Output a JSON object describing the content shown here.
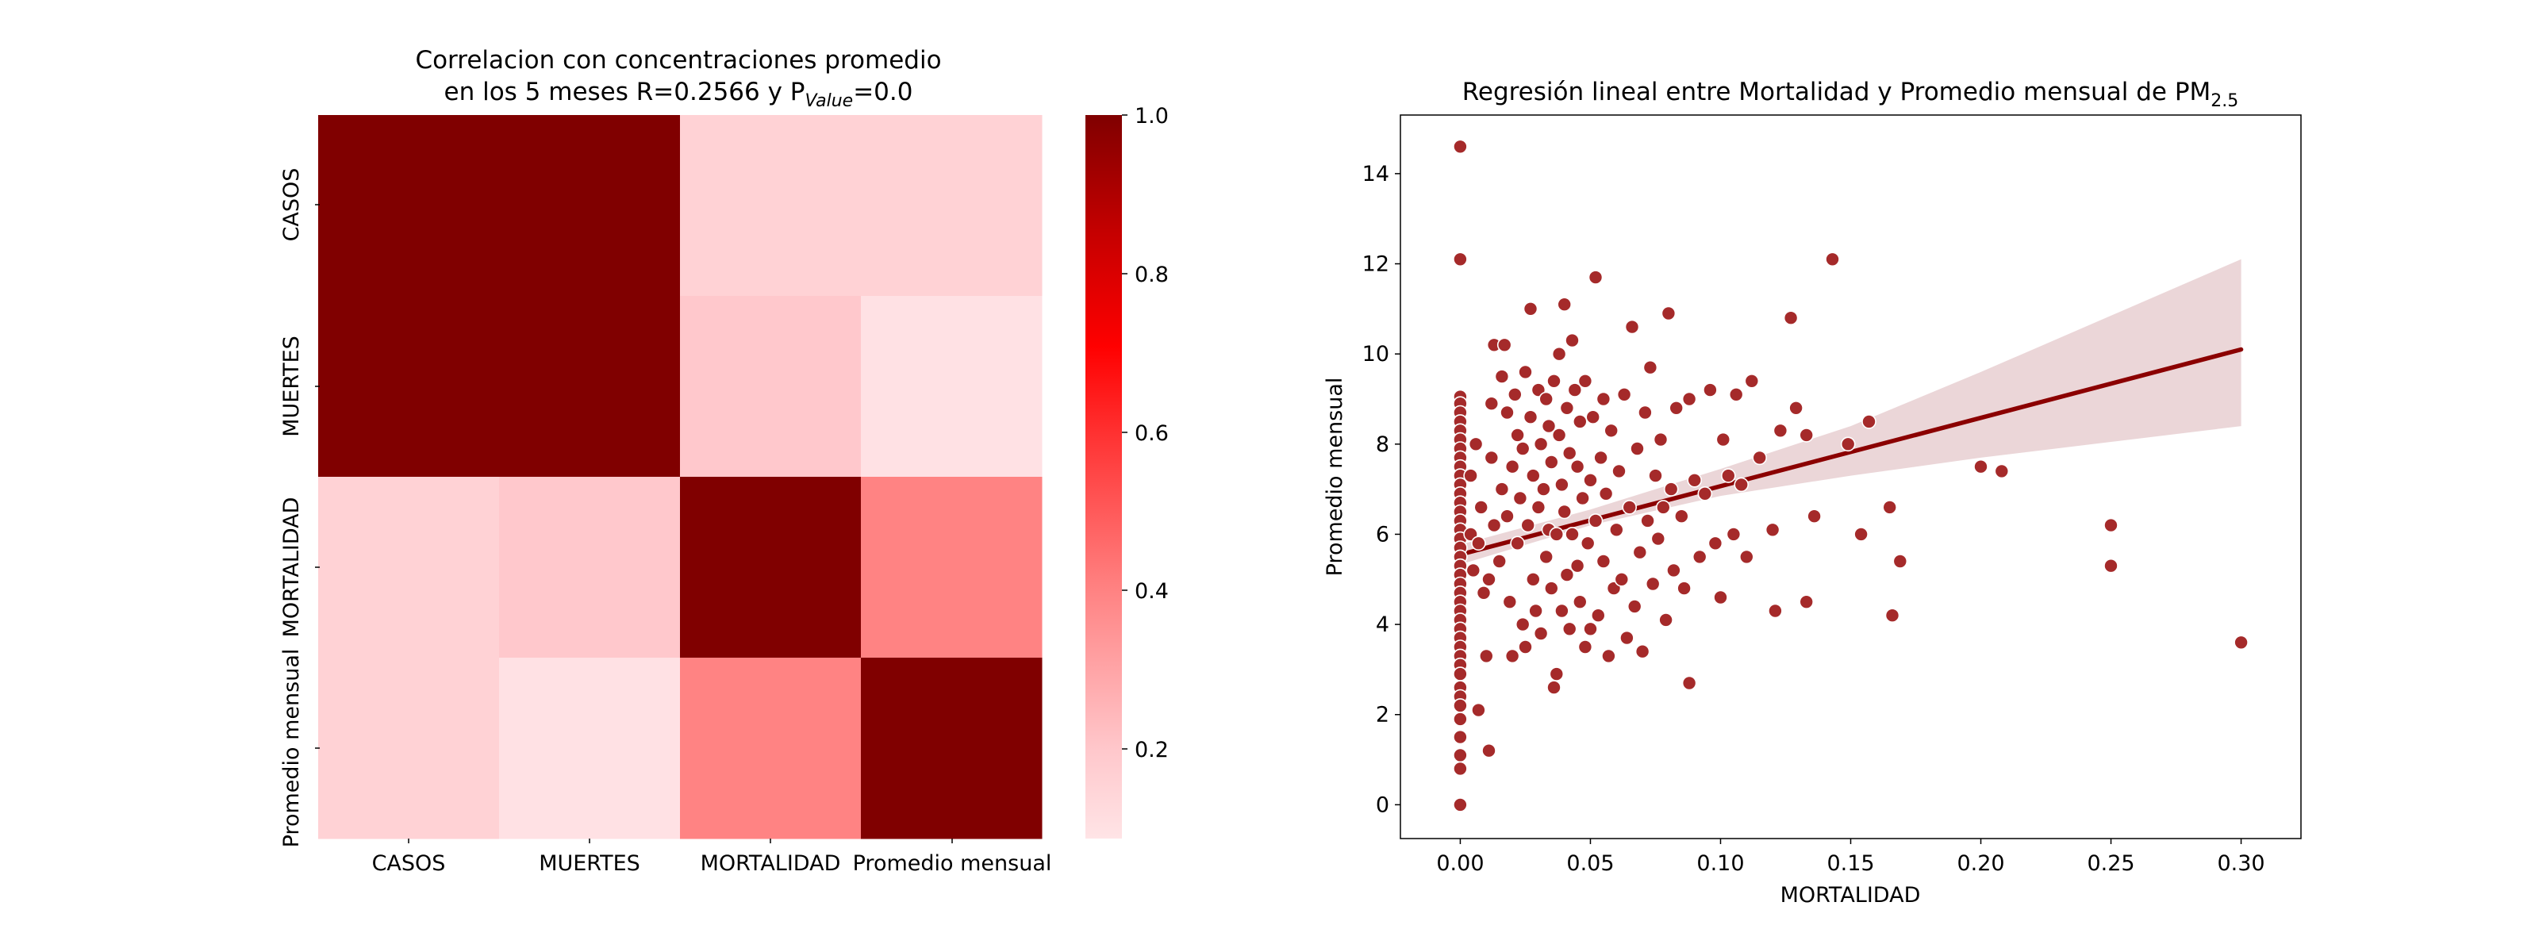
{
  "colors": {
    "scatter_point": "#a52a2a",
    "point_edge": "#ffffff",
    "regression_line": "#8b0000",
    "confidence_band": "#e8cfd1",
    "colormap": [
      "#ffe4e6",
      "#ffc8cc",
      "#ff8080",
      "#ff3535",
      "#ff0000",
      "#c40000",
      "#800000"
    ]
  },
  "heatmap": {
    "title_line1": "Correlacion con concentraciones promedio",
    "title_line2_prefix": "en los 5 meses R=0.2566 y P",
    "title_line2_sub": "Value",
    "title_line2_suffix": "=0.0",
    "row_labels": [
      "CASOS",
      "MUERTES",
      "MORTALIDAD",
      "Promedio mensual"
    ],
    "col_labels": [
      "CASOS",
      "MUERTES",
      "MORTALIDAD",
      "Promedio mensual"
    ],
    "colorbar_ticks": [
      "1.0",
      "0.8",
      "0.6",
      "0.4",
      "0.2"
    ]
  },
  "scatter": {
    "title_prefix": "Regresión lineal entre Mortalidad y Promedio mensual de PM",
    "title_sub": "2.5",
    "xlabel": "MORTALIDAD",
    "ylabel": "Promedio mensual",
    "xticks": [
      "0.00",
      "0.05",
      "0.10",
      "0.15",
      "0.20",
      "0.25",
      "0.30"
    ],
    "yticks": [
      "0",
      "2",
      "4",
      "6",
      "8",
      "10",
      "12",
      "14"
    ]
  },
  "chart_data": [
    {
      "type": "heatmap",
      "rows": [
        "CASOS",
        "MUERTES",
        "MORTALIDAD",
        "Promedio mensual"
      ],
      "columns": [
        "CASOS",
        "MUERTES",
        "MORTALIDAD",
        "Promedio mensual"
      ],
      "values": [
        [
          1.0,
          1.0,
          0.16,
          0.16
        ],
        [
          1.0,
          1.0,
          0.2,
          0.1
        ],
        [
          0.16,
          0.2,
          1.0,
          0.4
        ],
        [
          0.16,
          0.1,
          0.4,
          1.0
        ]
      ],
      "colorbar_range": [
        0.09,
        1.0
      ],
      "colorbar_ticks": [
        0.2,
        0.4,
        0.6,
        0.8,
        1.0
      ]
    },
    {
      "type": "scatter",
      "xlabel": "MORTALIDAD",
      "ylabel": "Promedio mensual",
      "xlim": [
        -0.023,
        0.323
      ],
      "ylim": [
        -0.75,
        15.3
      ],
      "xticks": [
        0.0,
        0.05,
        0.1,
        0.15,
        0.2,
        0.25,
        0.3
      ],
      "yticks": [
        0,
        2,
        4,
        6,
        8,
        10,
        12,
        14
      ],
      "regression_line": {
        "x": [
          0.0,
          0.3
        ],
        "y": [
          5.55,
          10.1
        ]
      },
      "confidence_band": {
        "x": [
          0.0,
          0.05,
          0.1,
          0.15,
          0.2,
          0.25,
          0.3
        ],
        "lower": [
          5.33,
          6.2,
          6.85,
          7.3,
          7.7,
          8.05,
          8.4
        ],
        "upper": [
          5.77,
          6.55,
          7.45,
          8.4,
          9.6,
          10.85,
          12.1
        ]
      },
      "points": [
        [
          0,
          14.6
        ],
        [
          0,
          12.1
        ],
        [
          0,
          9.05
        ],
        [
          0,
          8.9
        ],
        [
          0,
          8.7
        ],
        [
          0,
          8.5
        ],
        [
          0,
          8.3
        ],
        [
          0,
          8.1
        ],
        [
          0,
          7.9
        ],
        [
          0,
          7.7
        ],
        [
          0,
          7.5
        ],
        [
          0,
          7.3
        ],
        [
          0,
          7.1
        ],
        [
          0,
          6.9
        ],
        [
          0,
          6.7
        ],
        [
          0,
          6.5
        ],
        [
          0,
          6.3
        ],
        [
          0,
          6.1
        ],
        [
          0,
          5.9
        ],
        [
          0,
          5.7
        ],
        [
          0,
          5.5
        ],
        [
          0,
          5.3
        ],
        [
          0,
          5.1
        ],
        [
          0,
          4.9
        ],
        [
          0,
          4.7
        ],
        [
          0,
          4.5
        ],
        [
          0,
          4.3
        ],
        [
          0,
          4.1
        ],
        [
          0,
          3.9
        ],
        [
          0,
          3.7
        ],
        [
          0,
          3.5
        ],
        [
          0,
          3.3
        ],
        [
          0,
          3.1
        ],
        [
          0,
          2.9
        ],
        [
          0,
          2.6
        ],
        [
          0,
          2.4
        ],
        [
          0,
          2.2
        ],
        [
          0,
          1.9
        ],
        [
          0,
          1.5
        ],
        [
          0,
          1.1
        ],
        [
          0,
          0.8
        ],
        [
          0,
          0.0
        ],
        [
          0.004,
          7.3
        ],
        [
          0.004,
          6.0
        ],
        [
          0.005,
          5.2
        ],
        [
          0.006,
          8.0
        ],
        [
          0.007,
          5.8
        ],
        [
          0.008,
          6.6
        ],
        [
          0.009,
          4.7
        ],
        [
          0.007,
          2.1
        ],
        [
          0.011,
          1.2
        ],
        [
          0.01,
          3.3
        ],
        [
          0.011,
          5.0
        ],
        [
          0.012,
          7.7
        ],
        [
          0.013,
          6.2
        ],
        [
          0.012,
          8.9
        ],
        [
          0.013,
          10.2
        ],
        [
          0.015,
          5.4
        ],
        [
          0.016,
          9.5
        ],
        [
          0.016,
          7.0
        ],
        [
          0.017,
          10.2
        ],
        [
          0.018,
          8.7
        ],
        [
          0.018,
          6.4
        ],
        [
          0.019,
          4.5
        ],
        [
          0.02,
          3.3
        ],
        [
          0.02,
          7.5
        ],
        [
          0.021,
          9.1
        ],
        [
          0.022,
          5.8
        ],
        [
          0.022,
          8.2
        ],
        [
          0.023,
          6.8
        ],
        [
          0.024,
          4.0
        ],
        [
          0.024,
          7.9
        ],
        [
          0.025,
          3.5
        ],
        [
          0.025,
          9.6
        ],
        [
          0.026,
          6.2
        ],
        [
          0.027,
          8.6
        ],
        [
          0.027,
          11.0
        ],
        [
          0.028,
          5.0
        ],
        [
          0.028,
          7.3
        ],
        [
          0.029,
          4.3
        ],
        [
          0.03,
          9.2
        ],
        [
          0.03,
          6.6
        ],
        [
          0.031,
          8.0
        ],
        [
          0.031,
          3.8
        ],
        [
          0.032,
          7.0
        ],
        [
          0.033,
          9.0
        ],
        [
          0.033,
          5.5
        ],
        [
          0.034,
          6.1
        ],
        [
          0.034,
          8.4
        ],
        [
          0.035,
          4.8
        ],
        [
          0.035,
          7.6
        ],
        [
          0.036,
          2.6
        ],
        [
          0.036,
          9.4
        ],
        [
          0.037,
          2.9
        ],
        [
          0.037,
          6.0
        ],
        [
          0.038,
          10.0
        ],
        [
          0.038,
          8.2
        ],
        [
          0.039,
          4.3
        ],
        [
          0.039,
          7.1
        ],
        [
          0.04,
          11.1
        ],
        [
          0.04,
          6.5
        ],
        [
          0.041,
          8.8
        ],
        [
          0.041,
          5.1
        ],
        [
          0.042,
          3.9
        ],
        [
          0.042,
          7.8
        ],
        [
          0.043,
          10.3
        ],
        [
          0.043,
          6.0
        ],
        [
          0.044,
          9.2
        ],
        [
          0.045,
          5.3
        ],
        [
          0.045,
          7.5
        ],
        [
          0.046,
          4.5
        ],
        [
          0.046,
          8.5
        ],
        [
          0.047,
          6.8
        ],
        [
          0.048,
          3.5
        ],
        [
          0.048,
          9.4
        ],
        [
          0.049,
          5.8
        ],
        [
          0.05,
          7.2
        ],
        [
          0.05,
          3.9
        ],
        [
          0.051,
          8.6
        ],
        [
          0.052,
          11.7
        ],
        [
          0.052,
          6.3
        ],
        [
          0.053,
          4.2
        ],
        [
          0.054,
          7.7
        ],
        [
          0.055,
          9.0
        ],
        [
          0.055,
          5.4
        ],
        [
          0.056,
          6.9
        ],
        [
          0.057,
          3.3
        ],
        [
          0.058,
          8.3
        ],
        [
          0.059,
          4.8
        ],
        [
          0.06,
          6.1
        ],
        [
          0.061,
          7.4
        ],
        [
          0.062,
          5.0
        ],
        [
          0.063,
          9.1
        ],
        [
          0.064,
          3.7
        ],
        [
          0.065,
          6.6
        ],
        [
          0.066,
          10.6
        ],
        [
          0.067,
          4.4
        ],
        [
          0.068,
          7.9
        ],
        [
          0.069,
          5.6
        ],
        [
          0.07,
          3.4
        ],
        [
          0.071,
          8.7
        ],
        [
          0.072,
          6.3
        ],
        [
          0.073,
          9.7
        ],
        [
          0.074,
          4.9
        ],
        [
          0.075,
          7.3
        ],
        [
          0.076,
          5.9
        ],
        [
          0.077,
          8.1
        ],
        [
          0.078,
          6.6
        ],
        [
          0.079,
          4.1
        ],
        [
          0.08,
          10.9
        ],
        [
          0.081,
          7.0
        ],
        [
          0.082,
          5.2
        ],
        [
          0.083,
          8.8
        ],
        [
          0.085,
          6.4
        ],
        [
          0.086,
          4.8
        ],
        [
          0.088,
          2.7
        ],
        [
          0.088,
          9.0
        ],
        [
          0.09,
          7.2
        ],
        [
          0.092,
          5.5
        ],
        [
          0.094,
          6.9
        ],
        [
          0.096,
          9.2
        ],
        [
          0.098,
          5.8
        ],
        [
          0.1,
          4.6
        ],
        [
          0.101,
          8.1
        ],
        [
          0.103,
          7.3
        ],
        [
          0.105,
          6.0
        ],
        [
          0.106,
          9.1
        ],
        [
          0.108,
          7.1
        ],
        [
          0.11,
          5.5
        ],
        [
          0.112,
          9.4
        ],
        [
          0.115,
          7.7
        ],
        [
          0.12,
          6.1
        ],
        [
          0.121,
          4.3
        ],
        [
          0.123,
          8.3
        ],
        [
          0.127,
          10.8
        ],
        [
          0.129,
          8.8
        ],
        [
          0.133,
          4.5
        ],
        [
          0.133,
          8.2
        ],
        [
          0.136,
          6.4
        ],
        [
          0.143,
          12.1
        ],
        [
          0.149,
          8.0
        ],
        [
          0.154,
          6.0
        ],
        [
          0.157,
          8.5
        ],
        [
          0.165,
          6.6
        ],
        [
          0.166,
          4.2
        ],
        [
          0.169,
          5.4
        ],
        [
          0.2,
          7.5
        ],
        [
          0.208,
          7.4
        ],
        [
          0.25,
          6.2
        ],
        [
          0.25,
          5.3
        ],
        [
          0.3,
          3.6
        ]
      ]
    }
  ]
}
